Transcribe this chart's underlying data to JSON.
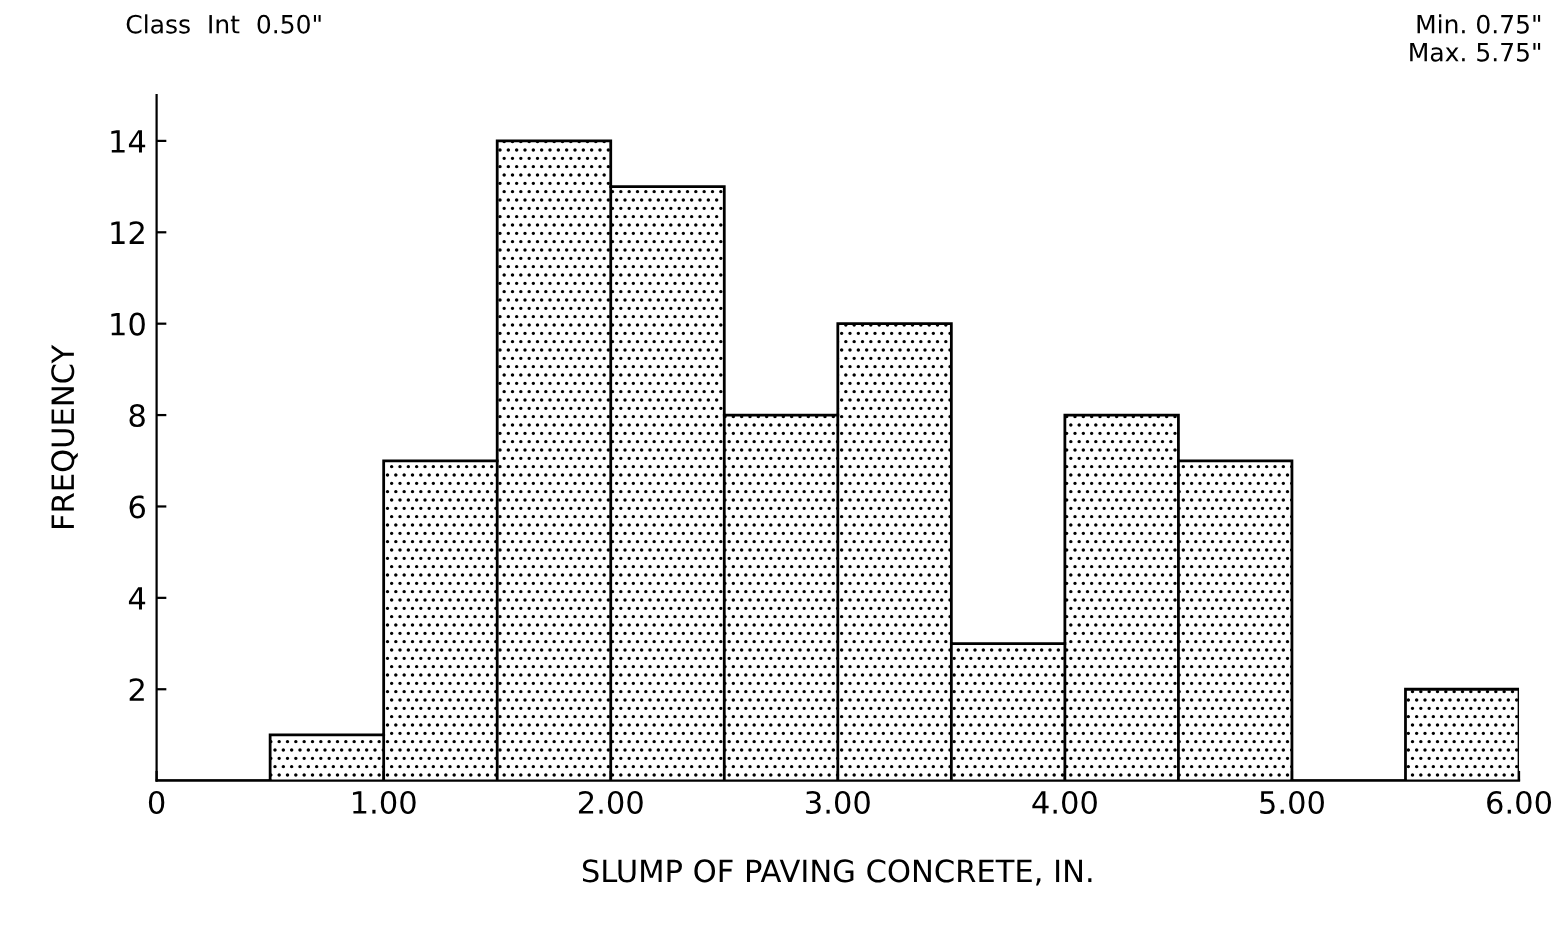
{
  "chart_data": {
    "type": "histogram",
    "xlabel": "SLUMP OF PAVING CONCRETE, IN.",
    "ylabel": "FREQUENCY",
    "bins": [
      0,
      0.5,
      1,
      1.5,
      2,
      2.5,
      3,
      3.5,
      4,
      4.5,
      5,
      5.5,
      6
    ],
    "values": [
      0,
      1,
      7,
      14,
      13,
      8,
      10,
      3,
      8,
      7,
      0,
      2
    ],
    "color": "#000000",
    "xlim": [
      0,
      6
    ],
    "xticks": [
      {
        "value": 0,
        "label": "0"
      },
      {
        "value": 1,
        "label": "1.00"
      },
      {
        "value": 2,
        "label": "2.00"
      },
      {
        "value": 3,
        "label": "3.00"
      },
      {
        "value": 4,
        "label": "4.00"
      },
      {
        "value": 5,
        "label": "5.00"
      },
      {
        "value": 6,
        "label": "6.00"
      }
    ],
    "ylim": [
      0,
      15
    ],
    "yticks": [
      2,
      4,
      6,
      8,
      10,
      12,
      14
    ],
    "annotations": [
      "Class  Int  0.50\"",
      "Min. 0.75\"\nMax. 5.75\""
    ]
  }
}
